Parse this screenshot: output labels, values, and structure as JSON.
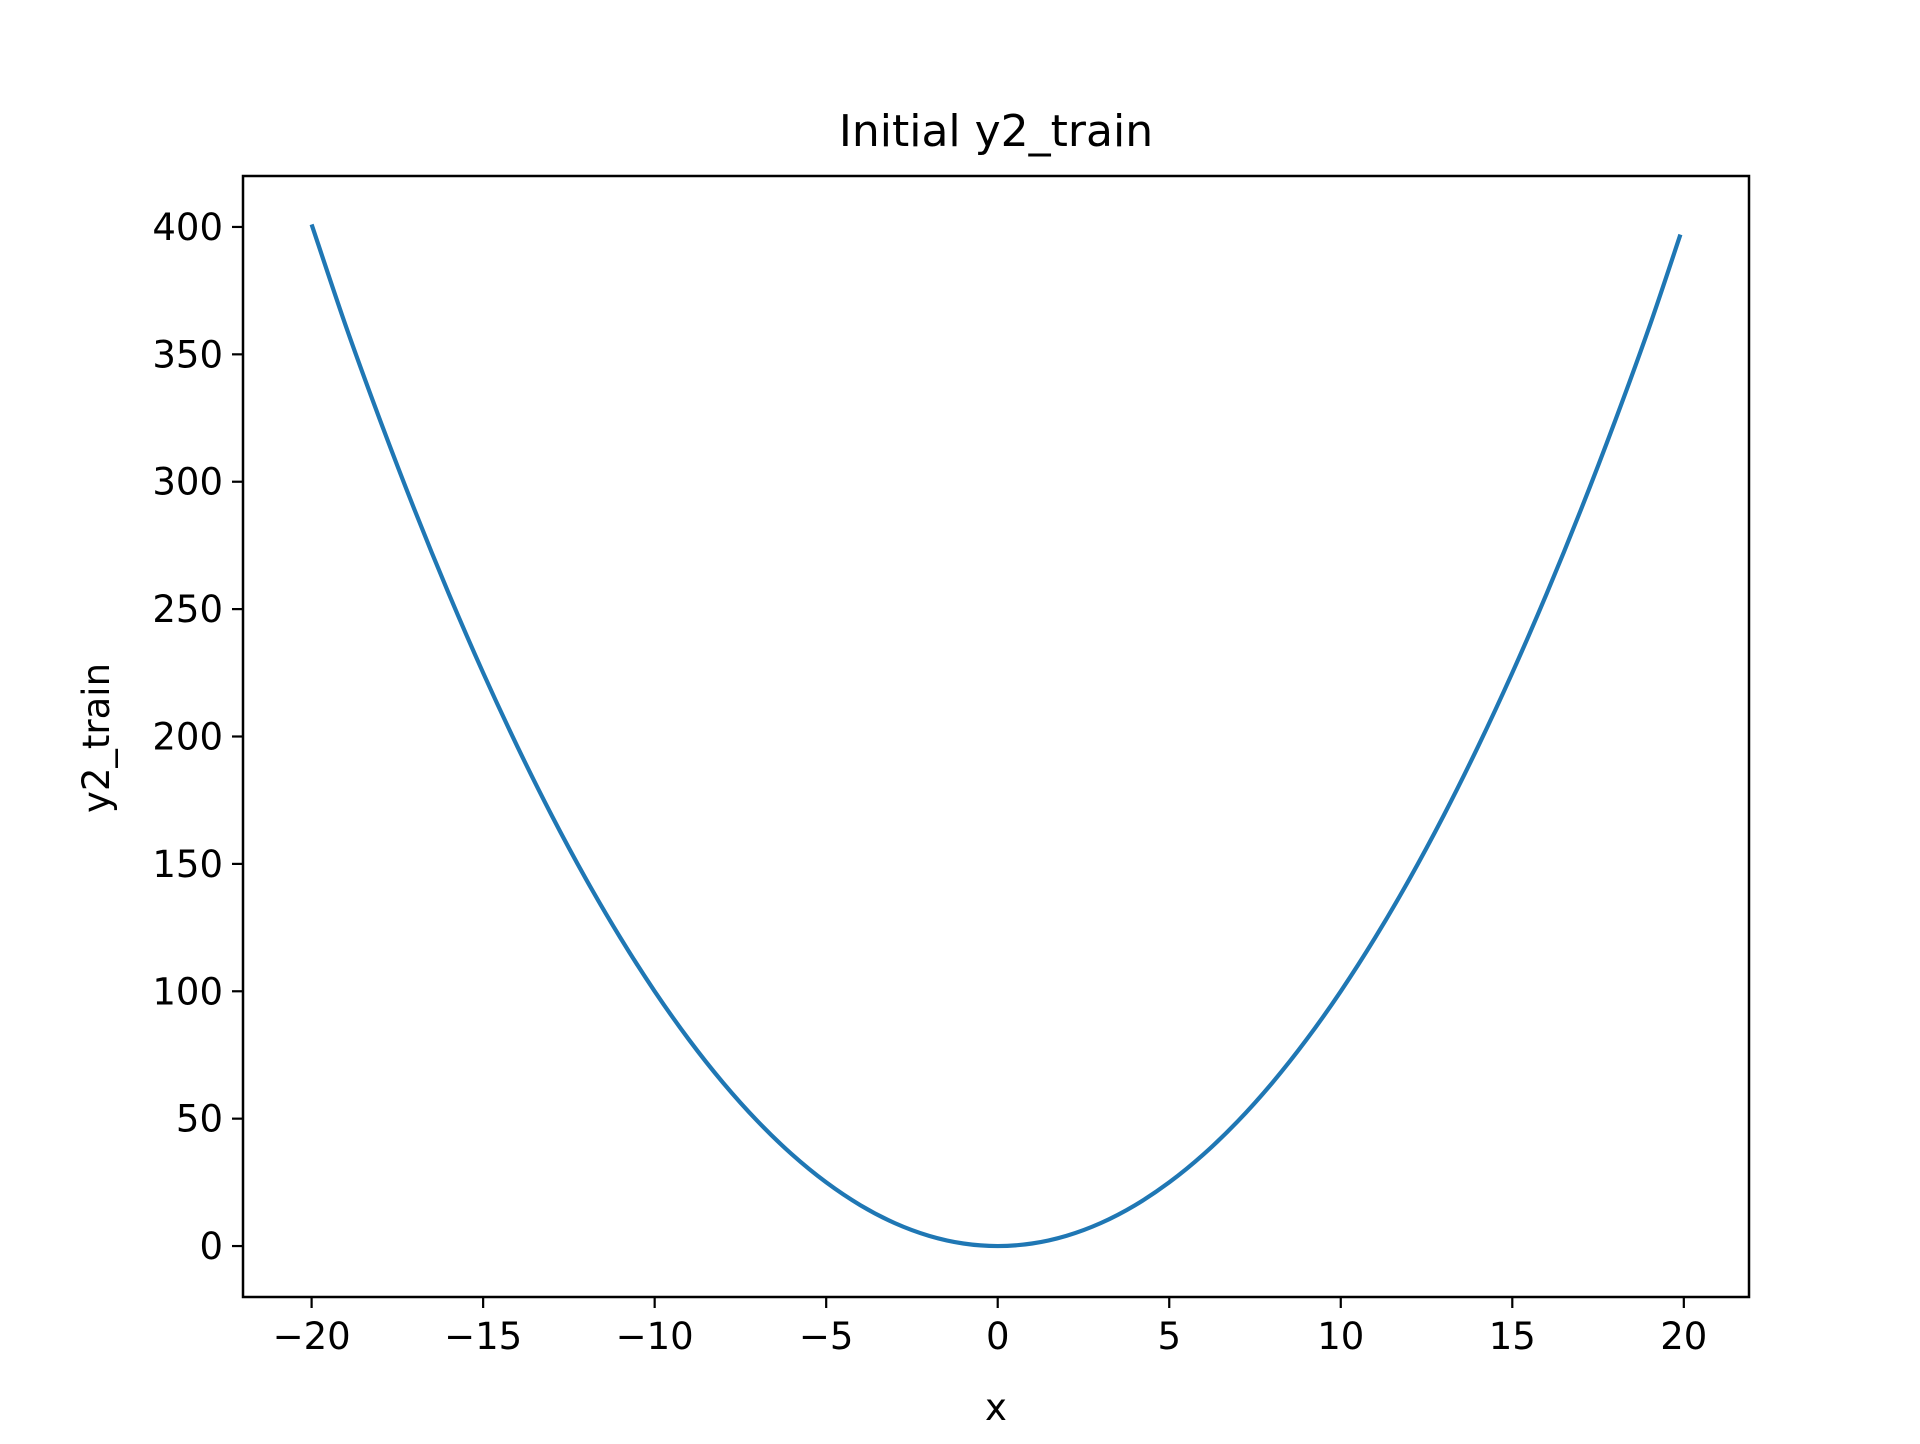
{
  "colors": {
    "line": "#1f77b4",
    "axes": "#000000",
    "background": "#ffffff"
  },
  "chart_data": {
    "type": "line",
    "title": "Initial y2_train",
    "xlabel": "x",
    "ylabel": "y2_train",
    "xlim": [
      -22,
      21.9
    ],
    "ylim": [
      -20,
      420
    ],
    "grid": false,
    "legend": "none",
    "xticks": [
      -20,
      -15,
      -10,
      -5,
      0,
      5,
      10,
      15,
      20
    ],
    "xtick_labels": [
      "−20",
      "−15",
      "−10",
      "−5",
      "0",
      "5",
      "10",
      "15",
      "20"
    ],
    "yticks": [
      0,
      50,
      100,
      150,
      200,
      250,
      300,
      350,
      400
    ],
    "ytick_labels": [
      "0",
      "50",
      "100",
      "150",
      "200",
      "250",
      "300",
      "350",
      "400"
    ],
    "series": [
      {
        "x": [
          -20.0,
          -19.0,
          -18.0,
          -17.0,
          -16.0,
          -15.0,
          -14.0,
          -13.0,
          -12.0,
          -11.0,
          -10.0,
          -9.0,
          -8.0,
          -7.0,
          -6.0,
          -5.0,
          -4.0,
          -3.0,
          -2.0,
          -1.0,
          0.0,
          1.0,
          2.0,
          3.0,
          4.0,
          5.0,
          6.0,
          7.0,
          8.0,
          9.0,
          10.0,
          11.0,
          12.0,
          13.0,
          14.0,
          15.0,
          16.0,
          17.0,
          18.0,
          19.0,
          19.9
        ],
        "y": [
          401,
          361,
          324,
          289,
          256,
          225,
          196,
          169,
          144,
          121,
          100,
          81,
          64,
          49,
          36,
          25,
          16,
          9,
          4,
          1,
          0,
          1,
          4,
          9,
          16,
          25,
          36,
          49,
          64,
          81,
          100,
          121,
          144,
          169,
          196,
          225,
          256,
          289,
          324,
          361,
          397
        ]
      }
    ]
  }
}
